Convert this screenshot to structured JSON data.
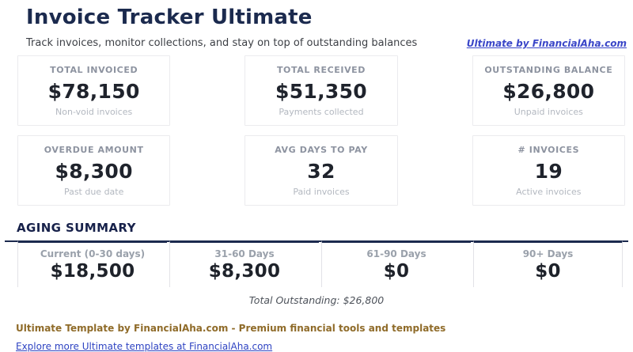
{
  "header": {
    "title": "Invoice Tracker Ultimate",
    "subtitle": "Track invoices, monitor collections, and stay on top of outstanding balances",
    "brand_link": "Ultimate by FinancialAha.com"
  },
  "stats": [
    {
      "label": "TOTAL INVOICED",
      "value": "$78,150",
      "sub": "Non-void invoices"
    },
    {
      "label": "TOTAL RECEIVED",
      "value": "$51,350",
      "sub": "Payments collected"
    },
    {
      "label": "OUTSTANDING BALANCE",
      "value": "$26,800",
      "sub": "Unpaid invoices"
    },
    {
      "label": "OVERDUE AMOUNT",
      "value": "$8,300",
      "sub": "Past due date"
    },
    {
      "label": "AVG DAYS TO PAY",
      "value": "32",
      "sub": "Paid invoices"
    },
    {
      "label": "# INVOICES",
      "value": "19",
      "sub": "Active invoices"
    }
  ],
  "aging": {
    "section_title": "AGING SUMMARY",
    "buckets": [
      {
        "label": "Current (0-30 days)",
        "value": "$18,500"
      },
      {
        "label": "31-60 Days",
        "value": "$8,300"
      },
      {
        "label": "61-90 Days",
        "value": "$0"
      },
      {
        "label": "90+ Days",
        "value": "$0"
      }
    ],
    "total_line": "Total Outstanding: $26,800"
  },
  "footer": {
    "tagline": "Ultimate Template by FinancialAha.com - Premium financial tools and templates",
    "explore_link": "Explore more Ultimate templates at FinancialAha.com"
  },
  "colors": {
    "navy": "#1b2a4e",
    "link_blue": "#3a46c8",
    "gold": "#8f6b29",
    "value_dark": "#1f232c",
    "label_gray": "#8d93a0"
  }
}
